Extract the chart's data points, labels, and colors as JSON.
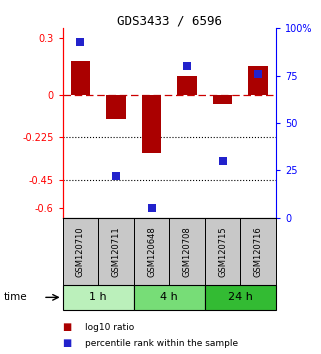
{
  "title": "GDS3433 / 6596",
  "samples": [
    "GSM120710",
    "GSM120711",
    "GSM120648",
    "GSM120708",
    "GSM120715",
    "GSM120716"
  ],
  "log10_ratio": [
    0.18,
    -0.13,
    -0.31,
    0.1,
    -0.05,
    0.15
  ],
  "percentile_rank": [
    93,
    22,
    5,
    80,
    30,
    76
  ],
  "groups": [
    {
      "label": "1 h",
      "indices": [
        0,
        1
      ],
      "color": "#bbf0bb"
    },
    {
      "label": "4 h",
      "indices": [
        2,
        3
      ],
      "color": "#77dd77"
    },
    {
      "label": "24 h",
      "indices": [
        4,
        5
      ],
      "color": "#33bb33"
    }
  ],
  "ylim_left": [
    -0.65,
    0.35
  ],
  "ylim_right": [
    0,
    100
  ],
  "yticks_left": [
    0.3,
    0.0,
    -0.225,
    -0.45,
    -0.6
  ],
  "ytick_labels_left": [
    "0.3",
    "0",
    "-0.225",
    "-0.45",
    "-0.6"
  ],
  "yticks_right": [
    100,
    75,
    50,
    25,
    0
  ],
  "ytick_labels_right": [
    "100%",
    "75",
    "50",
    "25",
    "0"
  ],
  "hlines_dotted": [
    -0.225,
    -0.45
  ],
  "hline_dashed": 0.0,
  "bar_color": "#aa0000",
  "dot_color": "#2222cc",
  "sample_box_color": "#c8c8c8",
  "background_color": "#ffffff",
  "bar_width": 0.55
}
